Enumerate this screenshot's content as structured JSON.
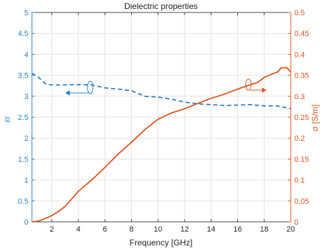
{
  "chart_data": {
    "type": "line",
    "title": "Dielectric properties",
    "xlabel": "Frequency [GHz]",
    "ylabel_left": "εr",
    "ylabel_right": "σ [S/m]",
    "xlim": [
      0.5,
      20
    ],
    "ylim_left": [
      0,
      5
    ],
    "ylim_right": [
      0,
      0.5
    ],
    "x_ticks": [
      "2",
      "4",
      "6",
      "8",
      "10",
      "12",
      "14",
      "16",
      "18",
      "20"
    ],
    "x_tick_values": [
      2,
      4,
      6,
      8,
      10,
      12,
      14,
      16,
      18,
      20
    ],
    "y_left_ticks": [
      "0",
      "0.5",
      "1",
      "1.5",
      "2",
      "2.5",
      "3",
      "3.5",
      "4",
      "4.5",
      "5"
    ],
    "y_left_tick_values": [
      0,
      0.5,
      1,
      1.5,
      2,
      2.5,
      3,
      3.5,
      4,
      4.5,
      5
    ],
    "y_right_ticks": [
      "0",
      "0.05",
      "0.1",
      "0.15",
      "0.2",
      "0.25",
      "0.3",
      "0.35",
      "0.4",
      "0.45",
      "0.5"
    ],
    "y_right_tick_values": [
      0,
      0.05,
      0.1,
      0.15,
      0.2,
      0.25,
      0.3,
      0.35,
      0.4,
      0.45,
      0.5
    ],
    "grid": true,
    "colors": {
      "permittivity": "#2a7fc1",
      "conductivity": "#d9531e"
    },
    "series": [
      {
        "axis": "left",
        "style": "dashed",
        "x": [
          0.5,
          1,
          1.5,
          2,
          3,
          4,
          5,
          6,
          7,
          8,
          9,
          10,
          11,
          12,
          13,
          14,
          15,
          16,
          17,
          18,
          19,
          20
        ],
        "values": [
          3.55,
          3.45,
          3.3,
          3.27,
          3.27,
          3.28,
          3.27,
          3.2,
          3.17,
          3.13,
          3.0,
          2.98,
          2.93,
          2.86,
          2.82,
          2.8,
          2.78,
          2.79,
          2.8,
          2.77,
          2.77,
          2.7
        ]
      },
      {
        "axis": "right",
        "style": "solid",
        "x": [
          0.5,
          1,
          1.5,
          2,
          2.5,
          3,
          3.5,
          4,
          5,
          6,
          7,
          8,
          9,
          10,
          11,
          12,
          13,
          14,
          15,
          16,
          17,
          17.5,
          18,
          18.5,
          19,
          19.3,
          19.7,
          20
        ],
        "values": [
          0.0,
          0.002,
          0.008,
          0.015,
          0.025,
          0.037,
          0.055,
          0.073,
          0.1,
          0.13,
          0.162,
          0.19,
          0.22,
          0.245,
          0.26,
          0.27,
          0.283,
          0.295,
          0.305,
          0.317,
          0.328,
          0.333,
          0.345,
          0.352,
          0.358,
          0.368,
          0.368,
          0.358
        ]
      }
    ]
  }
}
